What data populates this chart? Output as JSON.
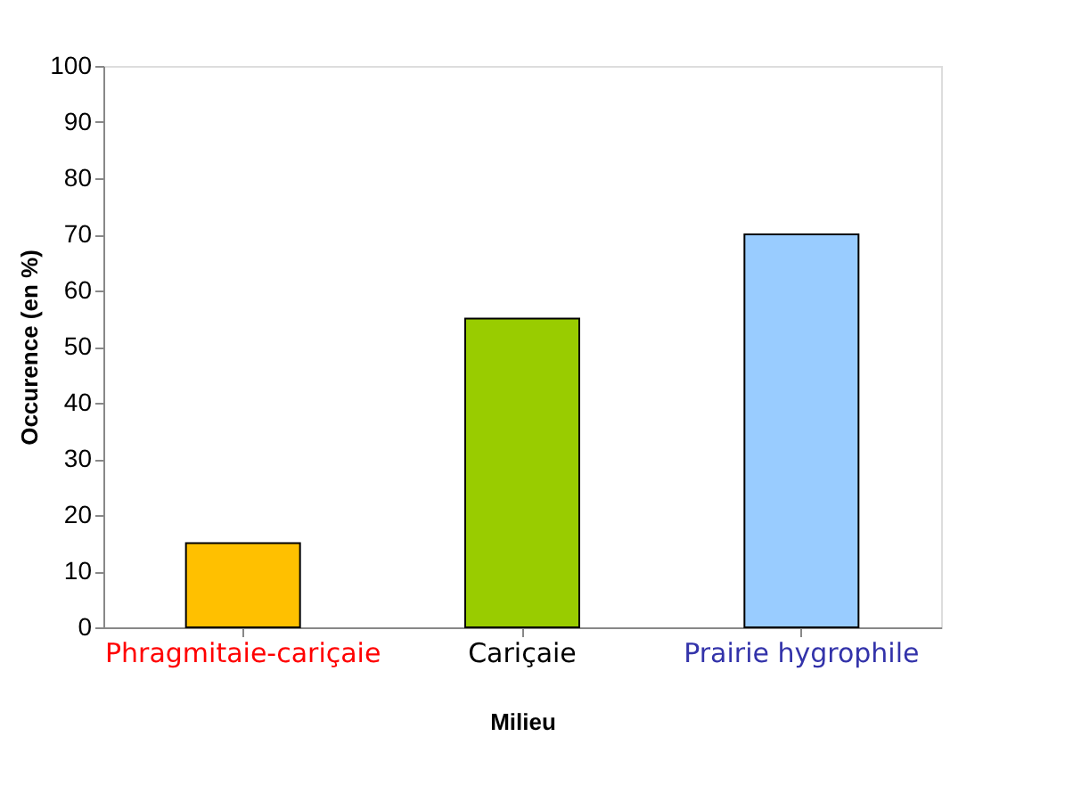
{
  "chart_data": {
    "type": "bar",
    "xlabel": "Milieu",
    "ylabel": "Occurence (en %)",
    "categories": [
      "Phragmitaie-cariçaie",
      "Cariçaie",
      "Prairie hygrophile"
    ],
    "values": [
      15,
      55,
      70
    ],
    "colors": [
      "#ffc000",
      "#99cc00",
      "#99ccff"
    ],
    "ylim": [
      0,
      100
    ],
    "yticks": [
      0,
      10,
      20,
      30,
      40,
      50,
      60,
      70,
      80,
      90,
      100
    ],
    "grid": false
  }
}
